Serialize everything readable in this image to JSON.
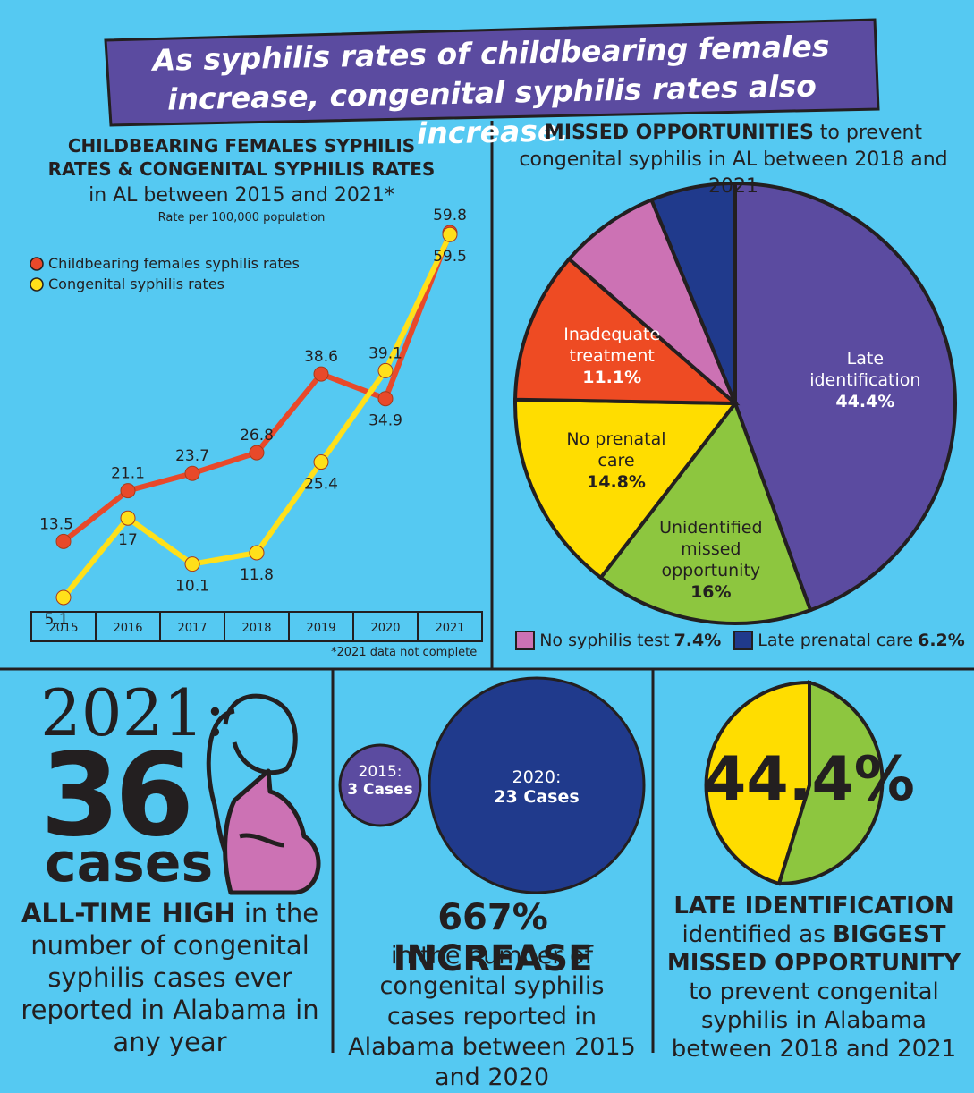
{
  "banner": "As syphilis rates of childbearing females increase, congenital syphilis rates also increase.",
  "chart_data": [
    {
      "type": "line",
      "title": "CHILDBEARING FEMALES SYPHILIS RATES & CONGENITAL SYPHILIS RATES",
      "subtitle": "in AL between 2015 and 2021*",
      "y_label": "Rate per 100,000 population",
      "note": "*2021 data not complete",
      "categories": [
        "2015",
        "2016",
        "2017",
        "2018",
        "2019",
        "2020",
        "2021"
      ],
      "series": [
        {
          "name": "Childbearing females syphilis rates",
          "color": "#e8492a",
          "values": [
            13.5,
            21.1,
            23.7,
            26.8,
            38.6,
            34.9,
            59.8
          ]
        },
        {
          "name": "Congenital syphilis rates",
          "color": "#ffe01a",
          "values": [
            5.1,
            17,
            10.1,
            11.8,
            25.4,
            39.1,
            59.5
          ]
        }
      ]
    },
    {
      "type": "pie",
      "title": "MISSED OPPORTUNITIES",
      "subtitle": "to prevent congenital syphilis in AL between 2018 and 2021",
      "categories": [
        "Late identification",
        "Unidentified missed opportunity",
        "No prenatal care",
        "Inadequate treatment",
        "No syphilis test",
        "Late prenatal care"
      ],
      "values": [
        44.4,
        16,
        14.8,
        11.1,
        7.4,
        6.2
      ],
      "value_labels": [
        "44.4%",
        "16%",
        "14.8%",
        "11.1%",
        "7.4%",
        "6.2%"
      ],
      "colors": [
        "#5b4ba0",
        "#8dc63f",
        "#ffdd00",
        "#ee4b23",
        "#cc72b4",
        "#203a8c"
      ]
    }
  ],
  "cases_panel": {
    "year": "2021:",
    "number": "36",
    "unit": "cases",
    "highlight": "ALL-TIME HIGH",
    "text": "in the number of congenital syphilis cases ever reported in Alabama in any year"
  },
  "increase_panel": {
    "small_year": "2015:",
    "small_cases": "3 Cases",
    "big_year": "2020:",
    "big_cases": "23 Cases",
    "headline": "667% INCREASE",
    "text": "in the number of congenital syphilis cases reported in Alabama between 2015 and 2020"
  },
  "late_panel": {
    "percent": "44.4%",
    "head1": "LATE IDENTIFICATION",
    "text1": "identified as",
    "head2": "BIGGEST MISSED OPPORTUNITY",
    "text2": "to prevent congenital syphilis in Alabama between 2018 and 2021"
  }
}
